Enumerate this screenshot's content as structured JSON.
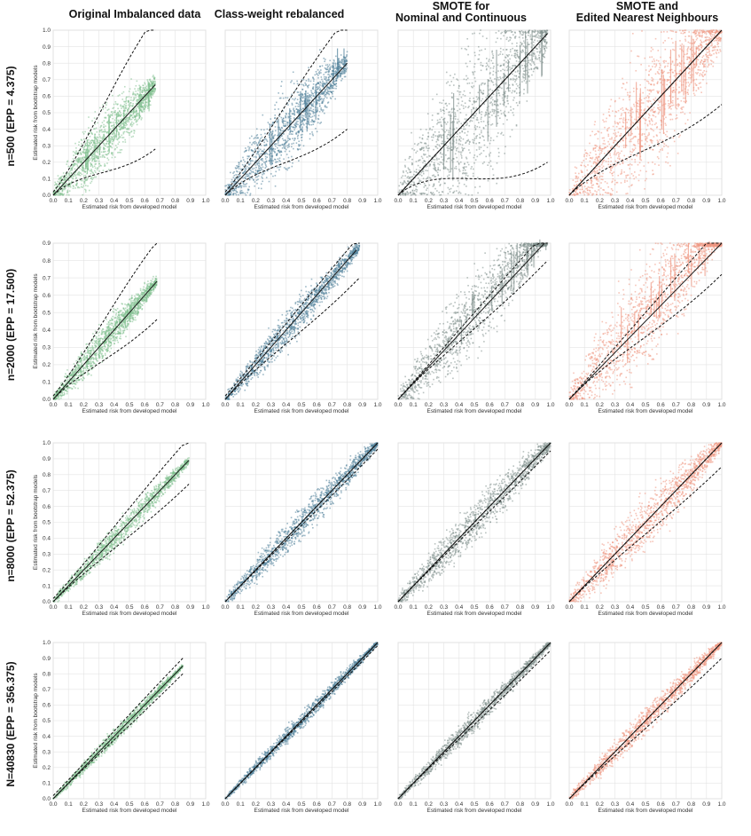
{
  "figure": {
    "column_titles": [
      [
        "Original Imbalanced data"
      ],
      [
        "Class-weight rebalanced"
      ],
      [
        "SMOTE for",
        "Nominal and Continuous"
      ],
      [
        "SMOTE and",
        "Edited Nearest Neighbours"
      ]
    ],
    "row_labels": [
      "n=500 (EPP = 4.375)",
      "n=2000 (EPP = 17.500)",
      "n=8000 (EPP = 52.375)",
      "N=40830 (EPP = 356.375)"
    ],
    "xlabel": "Estimated risk from developed model",
    "ylabel": "Estimated risk from bootstrap models",
    "colors": {
      "original": "#7fbf8e",
      "class_weight": "#4e7f99",
      "smote_nc": "#7f8f8c",
      "smote_enn": "#ee9680"
    }
  },
  "chart_data": [
    {
      "type": "scatter",
      "row": 0,
      "col": 0,
      "color": "original",
      "xlim": [
        0,
        1
      ],
      "ylim": [
        0,
        1
      ],
      "ticks": [
        "0.0",
        "0.1",
        "0.2",
        "0.3",
        "0.4",
        "0.5",
        "0.6",
        "0.7",
        "0.8",
        "0.9",
        "1.0"
      ],
      "xmax": 0.67,
      "lower_band_end": 0.28,
      "upper_band_end": 1.08,
      "spread": 0.38,
      "center_line": [
        [
          0,
          0
        ],
        [
          0.67,
          0.67
        ]
      ]
    },
    {
      "type": "scatter",
      "row": 0,
      "col": 1,
      "color": "class_weight",
      "xlim": [
        0,
        1
      ],
      "ylim": [
        0,
        1
      ],
      "ticks": [
        "0.0",
        "0.1",
        "0.2",
        "0.3",
        "0.4",
        "0.5",
        "0.6",
        "0.7",
        "0.8",
        "0.9",
        "1.0"
      ],
      "xmax": 0.8,
      "lower_band_end": 0.4,
      "upper_band_end": 1.08,
      "spread": 0.4,
      "center_line": [
        [
          0,
          0
        ],
        [
          0.8,
          0.8
        ]
      ]
    },
    {
      "type": "scatter",
      "row": 0,
      "col": 2,
      "color": "smote_nc",
      "xlim": [
        0,
        1
      ],
      "ylim": [
        0,
        1
      ],
      "ticks": [
        "0.0",
        "0.1",
        "0.2",
        "0.3",
        "0.4",
        "0.5",
        "0.6",
        "0.7",
        "0.8",
        "0.9",
        "1.0"
      ],
      "xmax": 0.98,
      "lower_band_end": 0.2,
      "upper_band_end": 0.98,
      "spread": 0.6,
      "center_line": [
        [
          0,
          0
        ],
        [
          0.98,
          0.98
        ]
      ]
    },
    {
      "type": "scatter",
      "row": 0,
      "col": 3,
      "color": "smote_enn",
      "xlim": [
        0,
        1
      ],
      "ylim": [
        0,
        1
      ],
      "ticks": [
        "0.0",
        "0.1",
        "0.2",
        "0.3",
        "0.4",
        "0.5",
        "0.6",
        "0.7",
        "0.8",
        "0.9",
        "1.0"
      ],
      "xmax": 1.0,
      "lower_band_end": 0.55,
      "upper_band_end": 1.0,
      "spread": 0.55,
      "center_line": [
        [
          0,
          0
        ],
        [
          1,
          1
        ]
      ]
    },
    {
      "type": "scatter",
      "row": 1,
      "col": 0,
      "color": "original",
      "xlim": [
        0,
        1
      ],
      "ylim": [
        0,
        0.9
      ],
      "ticks": [
        "0.0",
        "0.1",
        "0.2",
        "0.3",
        "0.4",
        "0.5",
        "0.6",
        "0.7",
        "0.8",
        "0.9",
        "1.0"
      ],
      "yticks": [
        "0.0",
        "0.1",
        "0.2",
        "0.3",
        "0.4",
        "0.5",
        "0.6",
        "0.7",
        "0.8",
        "0.9"
      ],
      "xmax": 0.68,
      "lower_band_end": 0.46,
      "upper_band_end": 0.91,
      "spread": 0.2,
      "center_line": [
        [
          0,
          0
        ],
        [
          0.68,
          0.68
        ]
      ]
    },
    {
      "type": "scatter",
      "row": 1,
      "col": 1,
      "color": "class_weight",
      "xlim": [
        0,
        1
      ],
      "ylim": [
        0,
        0.9
      ],
      "ticks": [
        "0.0",
        "0.1",
        "0.2",
        "0.3",
        "0.4",
        "0.5",
        "0.6",
        "0.7",
        "0.8",
        "0.9",
        "1.0"
      ],
      "xmax": 0.88,
      "lower_band_end": 0.7,
      "upper_band_end": 0.94,
      "spread": 0.16,
      "center_line": [
        [
          0,
          0
        ],
        [
          0.86,
          0.86
        ]
      ]
    },
    {
      "type": "scatter",
      "row": 1,
      "col": 2,
      "color": "smote_nc",
      "xlim": [
        0,
        1
      ],
      "ylim": [
        0,
        0.9
      ],
      "ticks": [
        "0.0",
        "0.1",
        "0.2",
        "0.3",
        "0.4",
        "0.5",
        "0.6",
        "0.7",
        "0.8",
        "0.9",
        "1.0"
      ],
      "xmax": 0.98,
      "lower_band_end": 0.8,
      "upper_band_end": 0.98,
      "spread": 0.3,
      "center_line": [
        [
          0,
          0
        ],
        [
          0.96,
          0.96
        ]
      ]
    },
    {
      "type": "scatter",
      "row": 1,
      "col": 3,
      "color": "smote_enn",
      "xlim": [
        0,
        1
      ],
      "ylim": [
        0,
        0.9
      ],
      "ticks": [
        "0.0",
        "0.1",
        "0.2",
        "0.3",
        "0.4",
        "0.5",
        "0.6",
        "0.7",
        "0.8",
        "0.9",
        "1.0"
      ],
      "xmax": 1.0,
      "lower_band_end": 0.72,
      "upper_band_end": 1.0,
      "spread": 0.4,
      "center_line": [
        [
          0,
          0
        ],
        [
          1,
          1
        ]
      ]
    },
    {
      "type": "scatter",
      "row": 2,
      "col": 0,
      "color": "original",
      "xlim": [
        0,
        1
      ],
      "ylim": [
        0,
        1
      ],
      "ticks": [
        "0.0",
        "0.1",
        "0.2",
        "0.3",
        "0.4",
        "0.5",
        "0.6",
        "0.7",
        "0.8",
        "0.9",
        "1.0"
      ],
      "xmax": 0.89,
      "lower_band_end": 0.74,
      "upper_band_end": 1.03,
      "spread": 0.12,
      "center_line": [
        [
          0,
          0
        ],
        [
          0.89,
          0.89
        ]
      ]
    },
    {
      "type": "scatter",
      "row": 2,
      "col": 1,
      "color": "class_weight",
      "xlim": [
        0,
        1
      ],
      "ylim": [
        0,
        1
      ],
      "ticks": [
        "0.0",
        "0.1",
        "0.2",
        "0.3",
        "0.4",
        "0.5",
        "0.6",
        "0.7",
        "0.8",
        "0.9",
        "1.0"
      ],
      "xmax": 1.0,
      "lower_band_end": 0.96,
      "upper_band_end": 1.0,
      "spread": 0.14,
      "center_line": [
        [
          0,
          0
        ],
        [
          1,
          1
        ]
      ]
    },
    {
      "type": "scatter",
      "row": 2,
      "col": 2,
      "color": "smote_nc",
      "xlim": [
        0,
        1
      ],
      "ylim": [
        0,
        1
      ],
      "ticks": [
        "0.0",
        "0.1",
        "0.2",
        "0.3",
        "0.4",
        "0.5",
        "0.6",
        "0.7",
        "0.8",
        "0.9",
        "1.0"
      ],
      "xmax": 1.0,
      "lower_band_end": 0.95,
      "upper_band_end": 1.0,
      "spread": 0.18,
      "center_line": [
        [
          0,
          0
        ],
        [
          1,
          1
        ]
      ]
    },
    {
      "type": "scatter",
      "row": 2,
      "col": 3,
      "color": "smote_enn",
      "xlim": [
        0,
        1
      ],
      "ylim": [
        0,
        1
      ],
      "ticks": [
        "0.0",
        "0.1",
        "0.2",
        "0.3",
        "0.4",
        "0.5",
        "0.6",
        "0.7",
        "0.8",
        "0.9",
        "1.0"
      ],
      "xmax": 1.0,
      "lower_band_end": 0.85,
      "upper_band_end": 1.0,
      "spread": 0.22,
      "center_line": [
        [
          0,
          0
        ],
        [
          1,
          1
        ]
      ]
    },
    {
      "type": "scatter",
      "row": 3,
      "col": 0,
      "color": "original",
      "xlim": [
        0,
        1
      ],
      "ylim": [
        0,
        1
      ],
      "ticks": [
        "0.0",
        "0.1",
        "0.2",
        "0.3",
        "0.4",
        "0.5",
        "0.6",
        "0.7",
        "0.8",
        "0.9",
        "1.0"
      ],
      "xmax": 0.85,
      "lower_band_end": 0.8,
      "upper_band_end": 0.9,
      "spread": 0.07,
      "center_line": [
        [
          0,
          0
        ],
        [
          0.85,
          0.85
        ]
      ]
    },
    {
      "type": "scatter",
      "row": 3,
      "col": 1,
      "color": "class_weight",
      "xlim": [
        0,
        1
      ],
      "ylim": [
        0,
        1
      ],
      "ticks": [
        "0.0",
        "0.1",
        "0.2",
        "0.3",
        "0.4",
        "0.5",
        "0.6",
        "0.7",
        "0.8",
        "0.9",
        "1.0"
      ],
      "xmax": 1.0,
      "lower_band_end": 0.98,
      "upper_band_end": 1.0,
      "spread": 0.07,
      "center_line": [
        [
          0,
          0
        ],
        [
          1,
          1
        ]
      ]
    },
    {
      "type": "scatter",
      "row": 3,
      "col": 2,
      "color": "smote_nc",
      "xlim": [
        0,
        1
      ],
      "ylim": [
        0,
        1
      ],
      "ticks": [
        "0.0",
        "0.1",
        "0.2",
        "0.3",
        "0.4",
        "0.5",
        "0.6",
        "0.7",
        "0.8",
        "0.9",
        "1.0"
      ],
      "xmax": 1.0,
      "lower_band_end": 0.95,
      "upper_band_end": 1.0,
      "spread": 0.09,
      "center_line": [
        [
          0,
          0
        ],
        [
          1,
          1
        ]
      ]
    },
    {
      "type": "scatter",
      "row": 3,
      "col": 3,
      "color": "smote_enn",
      "xlim": [
        0,
        1
      ],
      "ylim": [
        0,
        1
      ],
      "ticks": [
        "0.0",
        "0.1",
        "0.2",
        "0.3",
        "0.4",
        "0.5",
        "0.6",
        "0.7",
        "0.8",
        "0.9",
        "1.0"
      ],
      "xmax": 1.0,
      "lower_band_end": 0.9,
      "upper_band_end": 1.0,
      "spread": 0.11,
      "center_line": [
        [
          0,
          0
        ],
        [
          1,
          1
        ]
      ]
    }
  ]
}
